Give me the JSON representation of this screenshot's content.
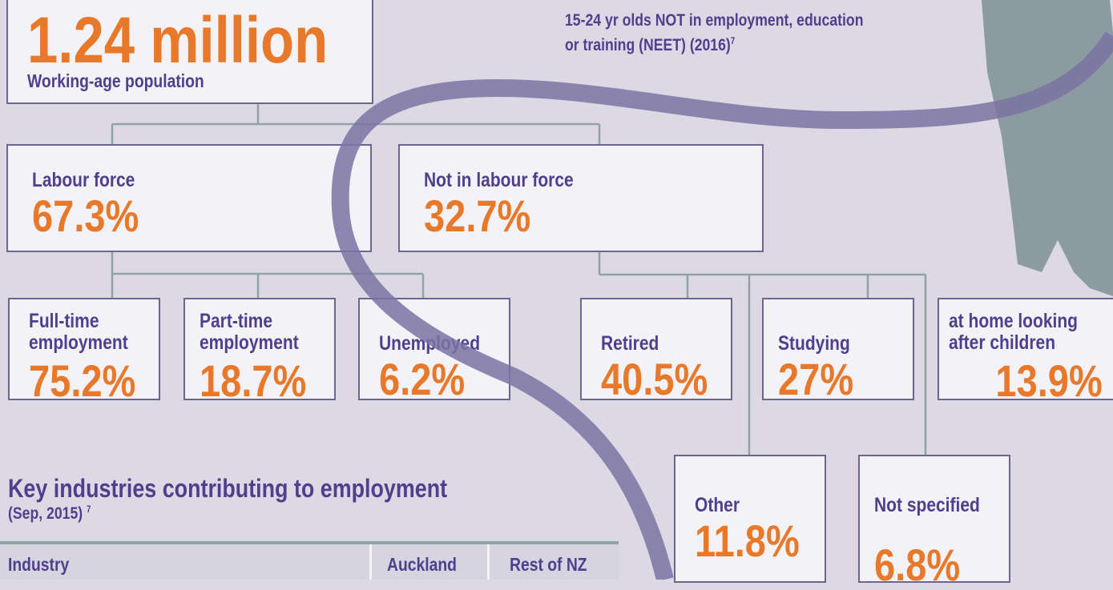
{
  "top": {
    "value": "1.24 million",
    "label": "Working-age population"
  },
  "neet": {
    "line1": "15-24 yr olds NOT in employment, education",
    "line2": "or training (NEET) (2016)",
    "note": "7"
  },
  "boxes": [
    {
      "label": "Labour force",
      "value": "67.3%"
    },
    {
      "label": "Not in labour force",
      "value": "32.7%"
    },
    {
      "label": "Full-time employment",
      "value": "75.2%"
    },
    {
      "label": "Part-time employment",
      "value": "18.7%"
    },
    {
      "label": "Unemployed",
      "value": "6.2%"
    },
    {
      "label": "Retired",
      "value": "40.5%"
    },
    {
      "label": "Studying",
      "value": "27%"
    },
    {
      "label": "at home looking after children",
      "value": "13.9%"
    },
    {
      "label": "Other",
      "value": "11.8%"
    },
    {
      "label": "Not specified",
      "value": "6.8%"
    }
  ],
  "section": {
    "title": "Key industries contributing to employment",
    "subtitle": "(Sep, 2015)",
    "note": "7"
  },
  "table": {
    "header": [
      "Industry",
      "Auckland",
      "Rest of NZ"
    ]
  }
}
